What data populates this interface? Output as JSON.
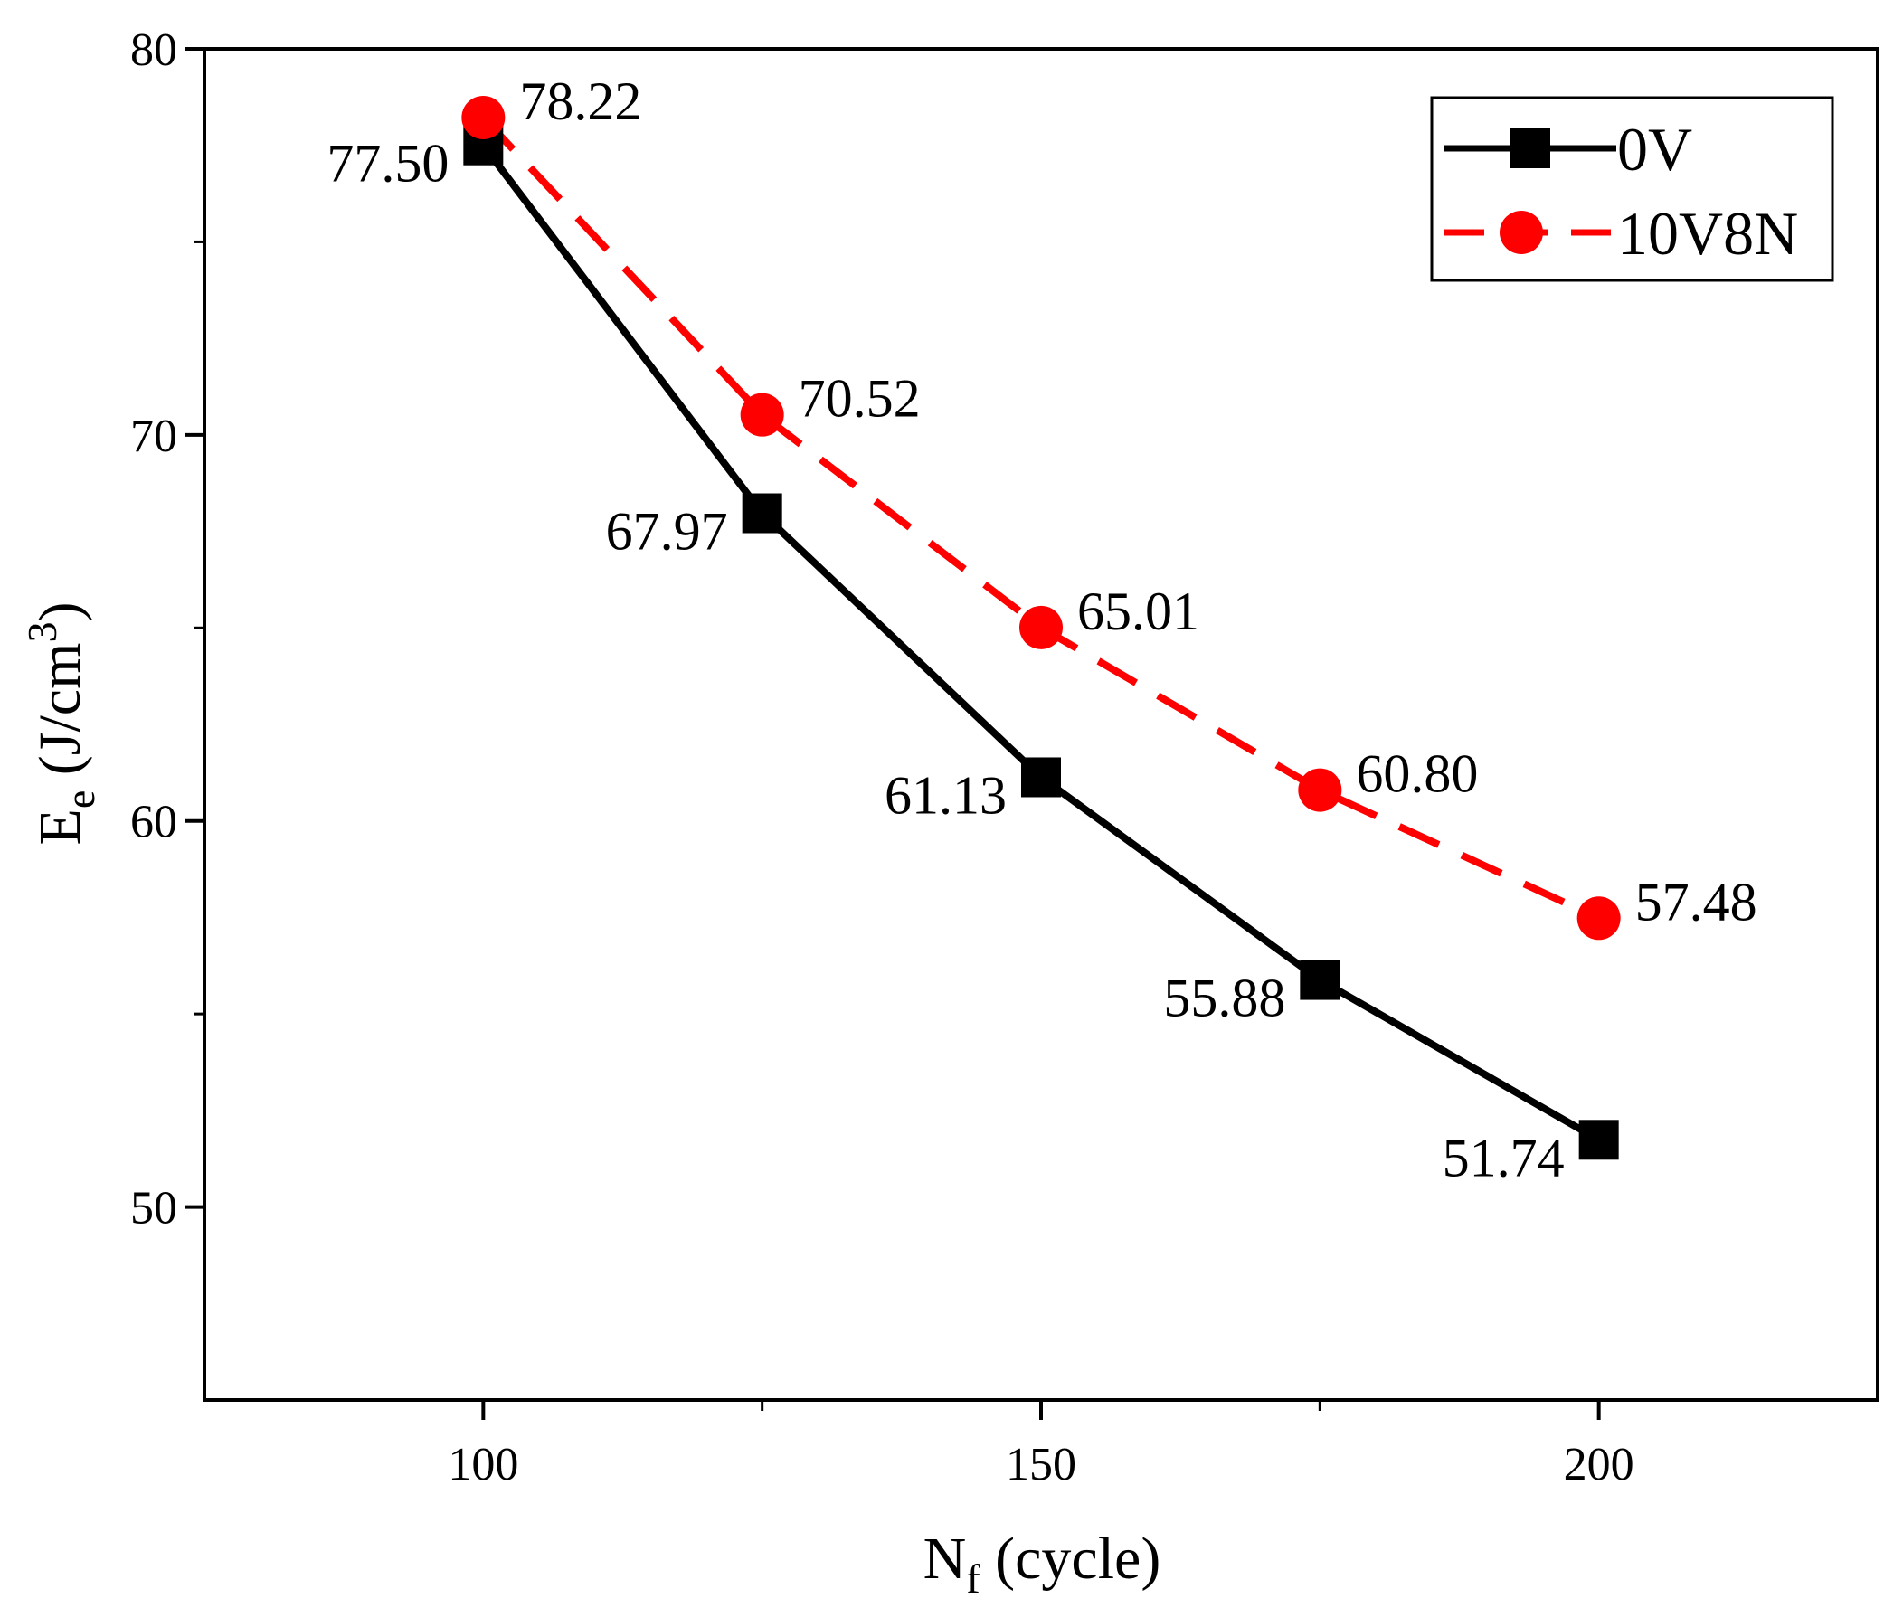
{
  "chart_data": {
    "type": "line",
    "xlabel_main": "N",
    "xlabel_sub": "f",
    "xlabel_rest": " (cycle)",
    "ylabel_main": "E",
    "ylabel_sub": "e",
    "ylabel_rest": " (J/cm",
    "ylabel_sup": "3",
    "ylabel_close": ")",
    "xlim": [
      75,
      225
    ],
    "ylim": [
      45,
      80
    ],
    "xticks": [
      100,
      150,
      200
    ],
    "xticks_minor": [
      125,
      175
    ],
    "yticks": [
      50,
      60,
      70,
      80
    ],
    "yticks_minor": [
      55,
      65,
      75
    ],
    "x": [
      100,
      125,
      150,
      175,
      200
    ],
    "series": [
      {
        "name": "0V",
        "values": [
          77.5,
          67.97,
          61.13,
          55.88,
          51.74
        ],
        "labels": [
          "77.50",
          "67.97",
          "61.13",
          "55.88",
          "51.74"
        ],
        "color": "#000000",
        "marker": "square",
        "line": "solid"
      },
      {
        "name": "10V8N",
        "values": [
          78.22,
          70.52,
          65.01,
          60.8,
          57.48
        ],
        "labels": [
          "78.22",
          "70.52",
          "65.01",
          "60.80",
          "57.48"
        ],
        "color": "#ff0000",
        "marker": "circle",
        "line": "dashed"
      }
    ],
    "legend": {
      "position": "top-right",
      "entries": [
        "0V",
        "10V8N"
      ]
    },
    "grid": false
  }
}
